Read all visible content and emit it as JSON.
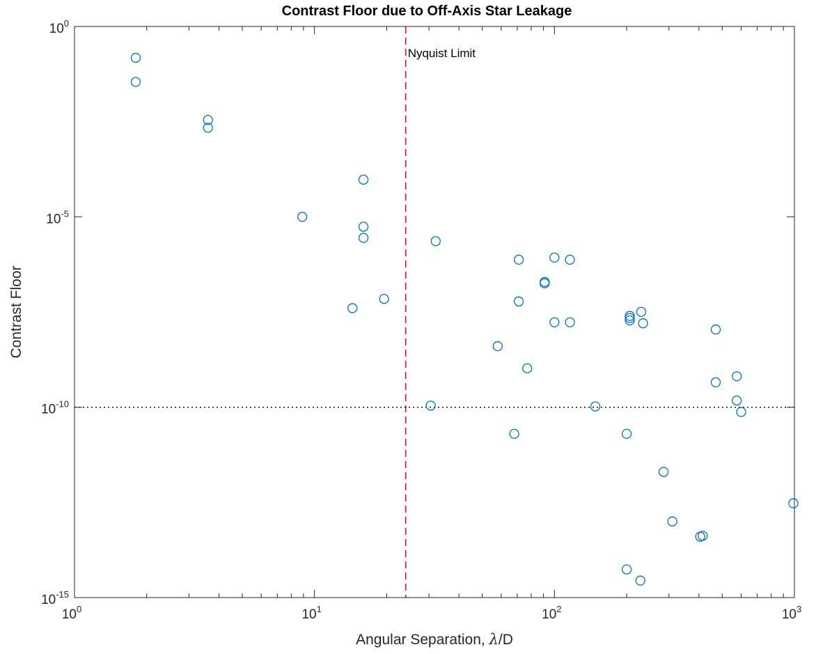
{
  "chart_data": {
    "type": "scatter",
    "title": "Contrast Floor due to Off-Axis Star Leakage",
    "xlabel_prefix": "Angular Separation, ",
    "xlabel_symbol": "λ",
    "xlabel_suffix": "/D",
    "ylabel": "Contrast Floor",
    "xscale": "log",
    "yscale": "log",
    "xlim": [
      1,
      1000
    ],
    "ylim": [
      1e-15,
      1
    ],
    "x_ticks": [
      {
        "value": 1,
        "base": "10",
        "exp": "0"
      },
      {
        "value": 10,
        "base": "10",
        "exp": "1"
      },
      {
        "value": 100,
        "base": "10",
        "exp": "2"
      },
      {
        "value": 1000,
        "base": "10",
        "exp": "3"
      }
    ],
    "y_ticks": [
      {
        "value": 1e-15,
        "base": "10",
        "exp": "-15"
      },
      {
        "value": 1e-10,
        "base": "10",
        "exp": "-10"
      },
      {
        "value": 1e-05,
        "base": "10",
        "exp": "-5"
      },
      {
        "value": 1,
        "base": "10",
        "exp": "0"
      }
    ],
    "grid": false,
    "legend": "none",
    "marker": "open-circle",
    "marker_color": "#0072BD",
    "reference_lines": [
      {
        "orientation": "vertical",
        "value": 24,
        "style": "dashed",
        "color": "#D62728",
        "label": "Nyquist Limit"
      },
      {
        "orientation": "horizontal",
        "value": 1e-10,
        "style": "dotted",
        "color": "#000000"
      }
    ],
    "points": [
      {
        "x": 1.8,
        "y": 0.15
      },
      {
        "x": 1.8,
        "y": 0.035
      },
      {
        "x": 3.6,
        "y": 0.0035
      },
      {
        "x": 3.6,
        "y": 0.0022
      },
      {
        "x": 8.9,
        "y": 1e-05
      },
      {
        "x": 14.4,
        "y": 4e-08
      },
      {
        "x": 16.0,
        "y": 9.5e-05
      },
      {
        "x": 16.0,
        "y": 5.5e-06
      },
      {
        "x": 16.0,
        "y": 2.8e-06
      },
      {
        "x": 19.5,
        "y": 7e-08
      },
      {
        "x": 30.5,
        "y": 1.1e-10
      },
      {
        "x": 32.0,
        "y": 2.3e-06
      },
      {
        "x": 58.0,
        "y": 4e-09
      },
      {
        "x": 68.0,
        "y": 2e-11
      },
      {
        "x": 71.0,
        "y": 7.5e-07
      },
      {
        "x": 71.0,
        "y": 6e-08
      },
      {
        "x": 77.0,
        "y": 1.05e-09
      },
      {
        "x": 91.0,
        "y": 1.8e-07
      },
      {
        "x": 91.0,
        "y": 1.95e-07
      },
      {
        "x": 100.0,
        "y": 8.5e-07
      },
      {
        "x": 100.0,
        "y": 1.7e-08
      },
      {
        "x": 116.0,
        "y": 7.5e-07
      },
      {
        "x": 116.0,
        "y": 1.7e-08
      },
      {
        "x": 148.0,
        "y": 1.05e-10
      },
      {
        "x": 200.0,
        "y": 2e-11
      },
      {
        "x": 206.0,
        "y": 2.5e-08
      },
      {
        "x": 206.0,
        "y": 2.2e-08
      },
      {
        "x": 206.0,
        "y": 1.9e-08
      },
      {
        "x": 230.0,
        "y": 3.2e-08
      },
      {
        "x": 234.0,
        "y": 1.6e-08
      },
      {
        "x": 200.0,
        "y": 5.5e-15
      },
      {
        "x": 228.0,
        "y": 2.8e-15
      },
      {
        "x": 285.0,
        "y": 2e-12
      },
      {
        "x": 310.0,
        "y": 1e-13
      },
      {
        "x": 405.0,
        "y": 4e-14
      },
      {
        "x": 415.0,
        "y": 4.2e-14
      },
      {
        "x": 470.0,
        "y": 1.1e-08
      },
      {
        "x": 470.0,
        "y": 4.5e-10
      },
      {
        "x": 575.0,
        "y": 6.5e-10
      },
      {
        "x": 575.0,
        "y": 1.5e-10
      },
      {
        "x": 600.0,
        "y": 7.5e-11
      },
      {
        "x": 990.0,
        "y": 3e-13
      }
    ]
  }
}
